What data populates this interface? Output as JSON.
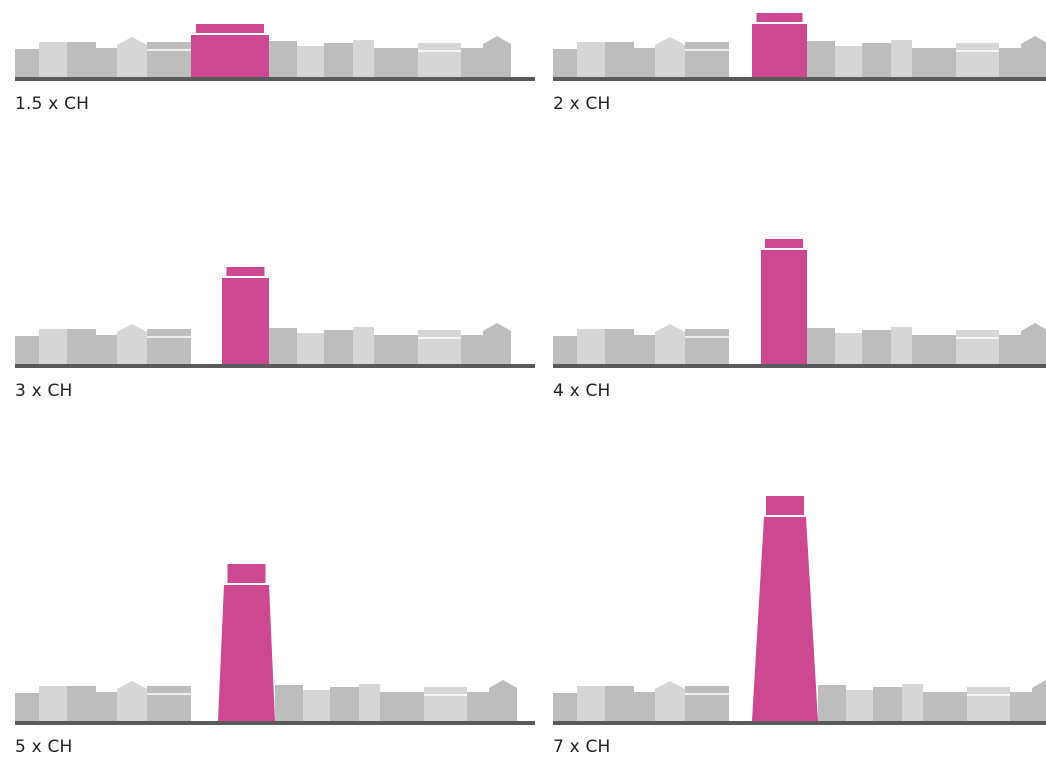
{
  "colors": {
    "highlight": "#cc4890",
    "ground": "#5a5a5a",
    "building_dark": "#bdbdbd",
    "building_light": "#d6d6d6"
  },
  "panels": [
    {
      "label": "1.5 x CH"
    },
    {
      "label": "2 x CH"
    },
    {
      "label": "3 x CH"
    },
    {
      "label": "4 x CH"
    },
    {
      "label": "5 x CH"
    },
    {
      "label": "7 x CH"
    }
  ]
}
